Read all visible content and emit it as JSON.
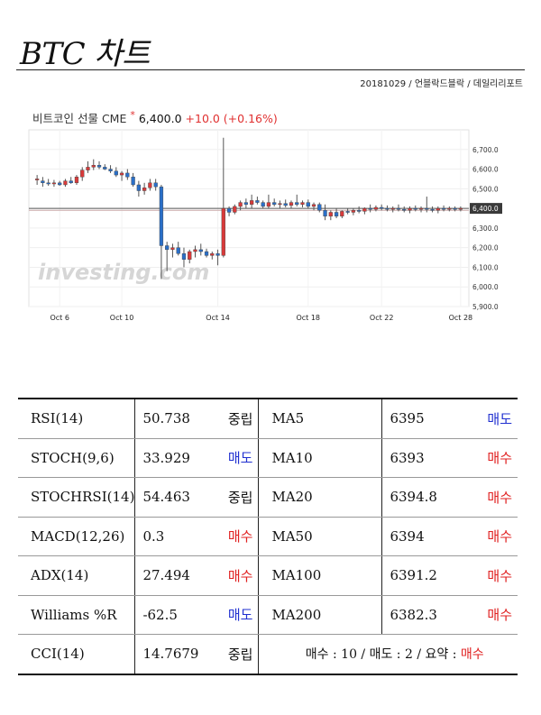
{
  "page": {
    "title": "BTC 차트",
    "meta": "20181029 / 언블락드블락 / 데일리리포트"
  },
  "chart_header": {
    "name": "비트코인 선물 CME",
    "star": "*",
    "price": "6,400.0",
    "change": "+10.0 (+0.16%)"
  },
  "chart_data": {
    "type": "candlestick",
    "watermark": "investing.com",
    "ylim": [
      5900,
      6800
    ],
    "y_ticks": [
      "6,700.0",
      "6,600.0",
      "6,500.0",
      "6,400.0",
      "6,300.0",
      "6,200.0",
      "6,100.0",
      "6,000.0",
      "5,900.0"
    ],
    "x_tick_labels": [
      "Oct 6",
      "Oct 10",
      "Oct 14",
      "Oct 18",
      "Oct 22",
      "Oct 28"
    ],
    "x_tick_index": [
      4,
      15,
      32,
      48,
      61,
      75
    ],
    "current_price_label": "6,400.0",
    "current_price": 6400,
    "reference_line": 6390,
    "candles": [
      {
        "o": 6545,
        "h": 6570,
        "l": 6520,
        "c": 6550
      },
      {
        "o": 6540,
        "h": 6560,
        "l": 6510,
        "c": 6530
      },
      {
        "o": 6530,
        "h": 6550,
        "l": 6515,
        "c": 6525
      },
      {
        "o": 6525,
        "h": 6545,
        "l": 6510,
        "c": 6530
      },
      {
        "o": 6530,
        "h": 6540,
        "l": 6515,
        "c": 6520
      },
      {
        "o": 6520,
        "h": 6550,
        "l": 6510,
        "c": 6540
      },
      {
        "o": 6540,
        "h": 6560,
        "l": 6525,
        "c": 6530
      },
      {
        "o": 6530,
        "h": 6570,
        "l": 6520,
        "c": 6560
      },
      {
        "o": 6560,
        "h": 6610,
        "l": 6540,
        "c": 6595
      },
      {
        "o": 6595,
        "h": 6640,
        "l": 6580,
        "c": 6610
      },
      {
        "o": 6610,
        "h": 6650,
        "l": 6595,
        "c": 6620
      },
      {
        "o": 6620,
        "h": 6640,
        "l": 6600,
        "c": 6610
      },
      {
        "o": 6610,
        "h": 6625,
        "l": 6595,
        "c": 6600
      },
      {
        "o": 6600,
        "h": 6620,
        "l": 6580,
        "c": 6590
      },
      {
        "o": 6590,
        "h": 6610,
        "l": 6560,
        "c": 6570
      },
      {
        "o": 6570,
        "h": 6590,
        "l": 6540,
        "c": 6580
      },
      {
        "o": 6580,
        "h": 6600,
        "l": 6545,
        "c": 6560
      },
      {
        "o": 6560,
        "h": 6580,
        "l": 6510,
        "c": 6520
      },
      {
        "o": 6520,
        "h": 6540,
        "l": 6460,
        "c": 6490
      },
      {
        "o": 6490,
        "h": 6530,
        "l": 6470,
        "c": 6505
      },
      {
        "o": 6505,
        "h": 6550,
        "l": 6490,
        "c": 6530
      },
      {
        "o": 6530,
        "h": 6550,
        "l": 6490,
        "c": 6510
      },
      {
        "o": 6510,
        "h": 6520,
        "l": 6040,
        "c": 6210
      },
      {
        "o": 6210,
        "h": 6230,
        "l": 6080,
        "c": 6190
      },
      {
        "o": 6190,
        "h": 6220,
        "l": 6150,
        "c": 6200
      },
      {
        "o": 6200,
        "h": 6230,
        "l": 6160,
        "c": 6170
      },
      {
        "o": 6170,
        "h": 6200,
        "l": 6100,
        "c": 6140
      },
      {
        "o": 6140,
        "h": 6190,
        "l": 6120,
        "c": 6180
      },
      {
        "o": 6180,
        "h": 6210,
        "l": 6150,
        "c": 6190
      },
      {
        "o": 6190,
        "h": 6220,
        "l": 6160,
        "c": 6180
      },
      {
        "o": 6180,
        "h": 6195,
        "l": 6150,
        "c": 6160
      },
      {
        "o": 6160,
        "h": 6180,
        "l": 6140,
        "c": 6170
      },
      {
        "o": 6170,
        "h": 6190,
        "l": 6110,
        "c": 6160
      },
      {
        "o": 6160,
        "h": 6760,
        "l": 6150,
        "c": 6400
      },
      {
        "o": 6400,
        "h": 6410,
        "l": 6360,
        "c": 6380
      },
      {
        "o": 6380,
        "h": 6420,
        "l": 6370,
        "c": 6410
      },
      {
        "o": 6410,
        "h": 6440,
        "l": 6390,
        "c": 6430
      },
      {
        "o": 6430,
        "h": 6450,
        "l": 6400,
        "c": 6420
      },
      {
        "o": 6420,
        "h": 6470,
        "l": 6400,
        "c": 6440
      },
      {
        "o": 6440,
        "h": 6460,
        "l": 6420,
        "c": 6430
      },
      {
        "o": 6430,
        "h": 6440,
        "l": 6400,
        "c": 6410
      },
      {
        "o": 6410,
        "h": 6470,
        "l": 6400,
        "c": 6430
      },
      {
        "o": 6430,
        "h": 6450,
        "l": 6410,
        "c": 6420
      },
      {
        "o": 6420,
        "h": 6440,
        "l": 6400,
        "c": 6425
      },
      {
        "o": 6425,
        "h": 6445,
        "l": 6405,
        "c": 6415
      },
      {
        "o": 6415,
        "h": 6440,
        "l": 6400,
        "c": 6430
      },
      {
        "o": 6430,
        "h": 6470,
        "l": 6410,
        "c": 6420
      },
      {
        "o": 6420,
        "h": 6440,
        "l": 6405,
        "c": 6430
      },
      {
        "o": 6430,
        "h": 6445,
        "l": 6400,
        "c": 6410
      },
      {
        "o": 6410,
        "h": 6430,
        "l": 6390,
        "c": 6420
      },
      {
        "o": 6420,
        "h": 6430,
        "l": 6380,
        "c": 6390
      },
      {
        "o": 6390,
        "h": 6420,
        "l": 6340,
        "c": 6360
      },
      {
        "o": 6360,
        "h": 6390,
        "l": 6340,
        "c": 6380
      },
      {
        "o": 6380,
        "h": 6400,
        "l": 6350,
        "c": 6360
      },
      {
        "o": 6360,
        "h": 6390,
        "l": 6350,
        "c": 6385
      },
      {
        "o": 6385,
        "h": 6400,
        "l": 6370,
        "c": 6380
      },
      {
        "o": 6380,
        "h": 6400,
        "l": 6365,
        "c": 6390
      },
      {
        "o": 6390,
        "h": 6410,
        "l": 6375,
        "c": 6385
      },
      {
        "o": 6385,
        "h": 6405,
        "l": 6370,
        "c": 6400
      },
      {
        "o": 6400,
        "h": 6420,
        "l": 6380,
        "c": 6395
      },
      {
        "o": 6395,
        "h": 6415,
        "l": 6385,
        "c": 6405
      },
      {
        "o": 6405,
        "h": 6420,
        "l": 6390,
        "c": 6400
      },
      {
        "o": 6400,
        "h": 6415,
        "l": 6385,
        "c": 6395
      },
      {
        "o": 6395,
        "h": 6410,
        "l": 6380,
        "c": 6400
      },
      {
        "o": 6400,
        "h": 6420,
        "l": 6385,
        "c": 6395
      },
      {
        "o": 6395,
        "h": 6410,
        "l": 6380,
        "c": 6390
      },
      {
        "o": 6390,
        "h": 6410,
        "l": 6375,
        "c": 6400
      },
      {
        "o": 6400,
        "h": 6415,
        "l": 6385,
        "c": 6395
      },
      {
        "o": 6395,
        "h": 6410,
        "l": 6380,
        "c": 6400
      },
      {
        "o": 6400,
        "h": 6460,
        "l": 6380,
        "c": 6395
      },
      {
        "o": 6395,
        "h": 6410,
        "l": 6380,
        "c": 6390
      },
      {
        "o": 6390,
        "h": 6410,
        "l": 6375,
        "c": 6400
      },
      {
        "o": 6400,
        "h": 6415,
        "l": 6385,
        "c": 6395
      },
      {
        "o": 6395,
        "h": 6410,
        "l": 6385,
        "c": 6400
      },
      {
        "o": 6400,
        "h": 6410,
        "l": 6385,
        "c": 6395
      },
      {
        "o": 6395,
        "h": 6410,
        "l": 6385,
        "c": 6400
      }
    ]
  },
  "indicators": [
    {
      "name": "RSI(14)",
      "value": "50.738",
      "signal": "중립",
      "signal_type": "neutral",
      "ma": "MA5",
      "ma_value": "6395",
      "ma_signal": "매도",
      "ma_signal_type": "sell"
    },
    {
      "name": "STOCH(9,6)",
      "value": "33.929",
      "signal": "매도",
      "signal_type": "sell",
      "ma": "MA10",
      "ma_value": "6393",
      "ma_signal": "매수",
      "ma_signal_type": "buy"
    },
    {
      "name": "STOCHRSI(14)",
      "value": "54.463",
      "signal": "중립",
      "signal_type": "neutral",
      "ma": "MA20",
      "ma_value": "6394.8",
      "ma_signal": "매수",
      "ma_signal_type": "buy"
    },
    {
      "name": "MACD(12,26)",
      "value": "0.3",
      "signal": "매수",
      "signal_type": "buy",
      "ma": "MA50",
      "ma_value": "6394",
      "ma_signal": "매수",
      "ma_signal_type": "buy"
    },
    {
      "name": "ADX(14)",
      "value": "27.494",
      "signal": "매수",
      "signal_type": "buy",
      "ma": "MA100",
      "ma_value": "6391.2",
      "ma_signal": "매수",
      "ma_signal_type": "buy"
    },
    {
      "name": "Williams %R",
      "value": "-62.5",
      "signal": "매도",
      "signal_type": "sell",
      "ma": "MA200",
      "ma_value": "6382.3",
      "ma_signal": "매수",
      "ma_signal_type": "buy"
    },
    {
      "name": "CCI(14)",
      "value": "14.7679",
      "signal": "중립",
      "signal_type": "neutral"
    }
  ],
  "summary": {
    "text": "매수 : 10 / 매도 : 2 / 요약 : ",
    "verdict": "매수"
  },
  "colors": {
    "up": "#d83a3a",
    "down": "#2a6fc8",
    "buy": "#e02020",
    "sell": "#2030d0"
  }
}
